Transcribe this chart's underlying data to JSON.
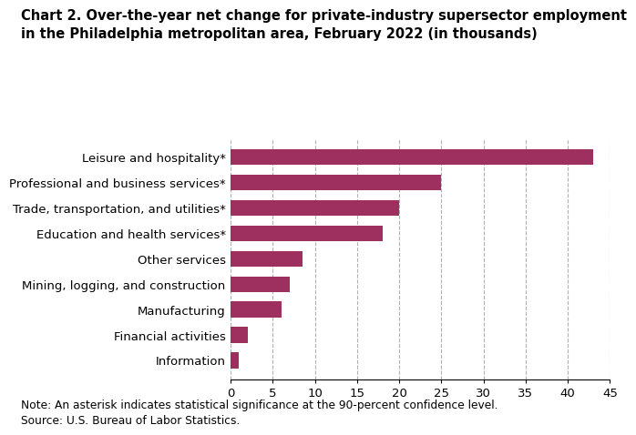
{
  "title": "Chart 2. Over-the-year net change for private-industry supersector employment\nin the Philadelphia metropolitan area, February 2022 (in thousands)",
  "categories": [
    "Information",
    "Financial activities",
    "Manufacturing",
    "Mining, logging, and construction",
    "Other services",
    "Education and health services*",
    "Trade, transportation, and utilities*",
    "Professional and business services*",
    "Leisure and hospitality*"
  ],
  "values": [
    1.0,
    2.0,
    6.0,
    7.0,
    8.5,
    18.0,
    20.0,
    25.0,
    43.0
  ],
  "bar_color": "#9e3060",
  "xlim": [
    0,
    45
  ],
  "xticks": [
    0,
    5,
    10,
    15,
    20,
    25,
    30,
    35,
    40,
    45
  ],
  "grid_color": "#b0b0b0",
  "note_line1": "Note: An asterisk indicates statistical significance at the 90-percent confidence level.",
  "note_line2": "Source: U.S. Bureau of Labor Statistics.",
  "title_fontsize": 10.5,
  "label_fontsize": 9.5,
  "tick_fontsize": 9.5,
  "note_fontsize": 8.8
}
